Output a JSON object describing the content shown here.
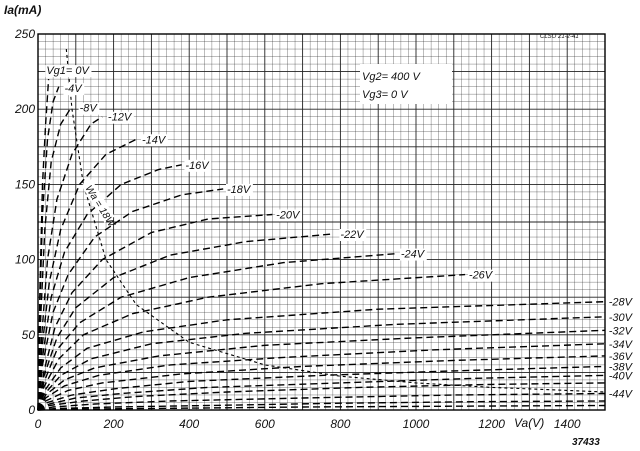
{
  "chart_data": {
    "type": "line",
    "ylabel": "Ia(mA)",
    "xlabel": "Va(V)",
    "code": "CLSO 21-2-41",
    "figure_number": "37433",
    "xlim": [
      0,
      1500
    ],
    "ylim": [
      0,
      250
    ],
    "x_ticks": [
      {
        "v": 0,
        "label": "0"
      },
      {
        "v": 200,
        "label": "200"
      },
      {
        "v": 400,
        "label": "400"
      },
      {
        "v": 600,
        "label": "600"
      },
      {
        "v": 800,
        "label": "800"
      },
      {
        "v": 1000,
        "label": "1000"
      },
      {
        "v": 1200,
        "label": "1200"
      },
      {
        "v": 1400,
        "label": "1400"
      }
    ],
    "y_ticks": [
      {
        "v": 0,
        "label": "0"
      },
      {
        "v": 50,
        "label": "50"
      },
      {
        "v": 100,
        "label": "100"
      },
      {
        "v": 150,
        "label": "150"
      },
      {
        "v": 200,
        "label": "200"
      },
      {
        "v": 250,
        "label": "250"
      }
    ],
    "conditions": [
      "Vg2= 400 V",
      "Vg3=    0 V"
    ],
    "locus": {
      "label": "Wa = 18W",
      "points": [
        [
          75,
          240
        ],
        [
          90,
          200
        ],
        [
          120,
          150
        ],
        [
          180,
          100
        ],
        [
          260,
          70
        ],
        [
          400,
          45
        ],
        [
          600,
          30
        ],
        [
          800,
          22.5
        ],
        [
          1000,
          18
        ],
        [
          1200,
          15
        ],
        [
          1400,
          13
        ],
        [
          1500,
          12
        ]
      ]
    },
    "series": [
      {
        "name": "Vg1= 0V",
        "label_at": [
          22,
          226
        ],
        "points": [
          [
            0,
            0
          ],
          [
            5,
            80
          ],
          [
            12,
            150
          ],
          [
            20,
            190
          ],
          [
            28,
            220
          ]
        ]
      },
      {
        "name": "-4V",
        "label_at": [
          70,
          214
        ],
        "points": [
          [
            0,
            0
          ],
          [
            5,
            70
          ],
          [
            12,
            130
          ],
          [
            25,
            180
          ],
          [
            40,
            205
          ],
          [
            55,
            215
          ]
        ]
      },
      {
        "name": "-8V",
        "label_at": [
          110,
          201
        ],
        "points": [
          [
            0,
            0
          ],
          [
            7,
            60
          ],
          [
            18,
            120
          ],
          [
            35,
            165
          ],
          [
            60,
            190
          ],
          [
            85,
            200
          ]
        ]
      },
      {
        "name": "-12V",
        "label_at": [
          185,
          195
        ],
        "points": [
          [
            0,
            0
          ],
          [
            10,
            50
          ],
          [
            25,
            100
          ],
          [
            50,
            140
          ],
          [
            90,
            170
          ],
          [
            140,
            190
          ],
          [
            170,
            195
          ]
        ]
      },
      {
        "name": "-14V",
        "label_at": [
          275,
          180
        ],
        "points": [
          [
            0,
            0
          ],
          [
            10,
            40
          ],
          [
            30,
            85
          ],
          [
            60,
            120
          ],
          [
            110,
            150
          ],
          [
            180,
            170
          ],
          [
            260,
            180
          ]
        ]
      },
      {
        "name": "-16V",
        "label_at": [
          390,
          163
        ],
        "points": [
          [
            0,
            0
          ],
          [
            12,
            35
          ],
          [
            35,
            75
          ],
          [
            70,
            105
          ],
          [
            130,
            130
          ],
          [
            220,
            150
          ],
          [
            320,
            160
          ],
          [
            380,
            163
          ]
        ]
      },
      {
        "name": "-18V",
        "label_at": [
          500,
          147
        ],
        "points": [
          [
            0,
            0
          ],
          [
            12,
            30
          ],
          [
            40,
            65
          ],
          [
            80,
            90
          ],
          [
            150,
            115
          ],
          [
            250,
            132
          ],
          [
            380,
            143
          ],
          [
            490,
            147
          ]
        ]
      },
      {
        "name": "-20V",
        "label_at": [
          630,
          130
        ],
        "points": [
          [
            0,
            0
          ],
          [
            15,
            25
          ],
          [
            45,
            55
          ],
          [
            90,
            78
          ],
          [
            170,
            100
          ],
          [
            300,
            118
          ],
          [
            450,
            127
          ],
          [
            620,
            130
          ]
        ]
      },
      {
        "name": "-22V",
        "label_at": [
          800,
          117
        ],
        "points": [
          [
            0,
            0
          ],
          [
            15,
            22
          ],
          [
            50,
            48
          ],
          [
            100,
            68
          ],
          [
            200,
            88
          ],
          [
            350,
            103
          ],
          [
            550,
            112
          ],
          [
            780,
            117
          ]
        ]
      },
      {
        "name": "-24V",
        "label_at": [
          960,
          104
        ],
        "points": [
          [
            0,
            0
          ],
          [
            15,
            18
          ],
          [
            50,
            40
          ],
          [
            110,
            58
          ],
          [
            220,
            75
          ],
          [
            400,
            88
          ],
          [
            650,
            98
          ],
          [
            950,
            104
          ]
        ]
      },
      {
        "name": "-26V",
        "label_at": [
          1140,
          90
        ],
        "points": [
          [
            0,
            0
          ],
          [
            15,
            15
          ],
          [
            55,
            34
          ],
          [
            120,
            50
          ],
          [
            250,
            64
          ],
          [
            450,
            75
          ],
          [
            750,
            84
          ],
          [
            1130,
            90
          ]
        ]
      },
      {
        "name": "-28V",
        "label_at": [
          1510,
          72
        ],
        "points": [
          [
            0,
            0
          ],
          [
            15,
            12
          ],
          [
            60,
            28
          ],
          [
            130,
            41
          ],
          [
            280,
            52
          ],
          [
            500,
            60
          ],
          [
            900,
            67
          ],
          [
            1500,
            72
          ]
        ]
      },
      {
        "name": "-30V",
        "label_at": [
          1510,
          62
        ],
        "points": [
          [
            0,
            0
          ],
          [
            15,
            10
          ],
          [
            60,
            23
          ],
          [
            140,
            34
          ],
          [
            300,
            44
          ],
          [
            550,
            51
          ],
          [
            950,
            57
          ],
          [
            1500,
            62
          ]
        ]
      },
      {
        "name": "-32V",
        "label_at": [
          1510,
          53
        ],
        "points": [
          [
            0,
            0
          ],
          [
            20,
            10
          ],
          [
            70,
            20
          ],
          [
            150,
            28
          ],
          [
            320,
            36
          ],
          [
            600,
            43
          ],
          [
            1000,
            48
          ],
          [
            1500,
            53
          ]
        ]
      },
      {
        "name": "-34V",
        "label_at": [
          1510,
          44
        ],
        "points": [
          [
            0,
            0
          ],
          [
            20,
            8
          ],
          [
            70,
            16
          ],
          [
            160,
            23
          ],
          [
            350,
            30
          ],
          [
            650,
            35
          ],
          [
            1050,
            40
          ],
          [
            1500,
            44
          ]
        ]
      },
      {
        "name": "-36V",
        "label_at": [
          1510,
          36
        ],
        "points": [
          [
            0,
            0
          ],
          [
            20,
            6
          ],
          [
            80,
            13
          ],
          [
            170,
            18
          ],
          [
            380,
            24
          ],
          [
            700,
            29
          ],
          [
            1100,
            33
          ],
          [
            1500,
            36
          ]
        ]
      },
      {
        "name": "-38V",
        "label_at": [
          1510,
          29
        ],
        "points": [
          [
            0,
            0
          ],
          [
            25,
            5
          ],
          [
            90,
            10
          ],
          [
            200,
            14
          ],
          [
            400,
            19
          ],
          [
            750,
            23
          ],
          [
            1100,
            26
          ],
          [
            1500,
            29
          ]
        ]
      },
      {
        "name": "-40V",
        "label_at": [
          1510,
          23
        ],
        "points": [
          [
            0,
            0
          ],
          [
            30,
            4
          ],
          [
            100,
            8
          ],
          [
            220,
            11
          ],
          [
            450,
            15
          ],
          [
            800,
            18
          ],
          [
            1150,
            21
          ],
          [
            1500,
            23
          ]
        ]
      },
      {
        "name": "-44V",
        "label_at": [
          1510,
          11
        ],
        "points": [
          [
            0,
            0
          ],
          [
            40,
            2
          ],
          [
            150,
            4
          ],
          [
            350,
            6
          ],
          [
            700,
            8
          ],
          [
            1100,
            10
          ],
          [
            1500,
            11
          ]
        ]
      }
    ],
    "unlabeled_series": [
      {
        "points": [
          [
            0,
            0
          ],
          [
            30,
            3
          ],
          [
            120,
            6
          ],
          [
            260,
            9
          ],
          [
            500,
            12
          ],
          [
            850,
            15
          ],
          [
            1200,
            17
          ],
          [
            1500,
            18
          ]
        ]
      },
      {
        "points": [
          [
            0,
            0
          ],
          [
            50,
            1
          ],
          [
            200,
            2
          ],
          [
            450,
            3
          ],
          [
            800,
            4.5
          ],
          [
            1150,
            5.5
          ],
          [
            1500,
            6
          ]
        ]
      },
      {
        "points": [
          [
            0,
            0
          ],
          [
            80,
            0.5
          ],
          [
            300,
            1
          ],
          [
            700,
            2
          ],
          [
            1100,
            2.5
          ],
          [
            1500,
            3
          ]
        ]
      }
    ],
    "grid": true
  }
}
